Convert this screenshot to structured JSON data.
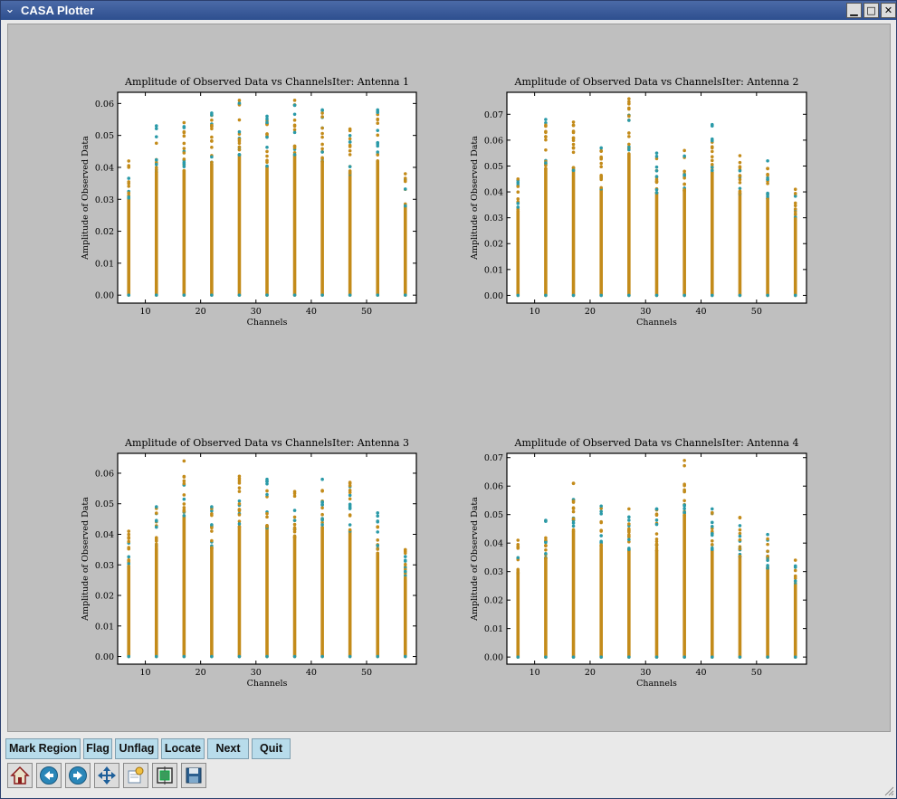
{
  "window": {
    "title": "CASA Plotter",
    "controls": [
      "minimize-icon",
      "maximize-icon",
      "close-icon"
    ]
  },
  "toolbar": {
    "buttons": [
      "Mark Region",
      "Flag",
      "Unflag",
      "Locate",
      "Next",
      "Quit"
    ]
  },
  "icon_toolbar": [
    "home-icon",
    "back-icon",
    "forward-icon",
    "pan-icon",
    "zoom-icon",
    "subplots-icon",
    "save-icon"
  ],
  "colors": {
    "series_a": "#2a9aa8",
    "series_b": "#c38b1a",
    "plot_background": "#bfbfbf",
    "title_bar": "#2e4f8f",
    "button": "#b8dceb"
  },
  "chart_data": [
    {
      "type": "scatter",
      "title": "Amplitude of Observed Data vs ChannelsIter: Antenna 1",
      "xlabel": "Channels",
      "ylabel": "Amplitude of Observed Data",
      "xlim": [
        5,
        59
      ],
      "ylim": [
        -0.0025,
        0.0635
      ],
      "xticks": [
        10,
        20,
        30,
        40,
        50
      ],
      "yticks": [
        0.0,
        0.01,
        0.02,
        0.03,
        0.04,
        0.05,
        0.06
      ],
      "ytick_labels": [
        "0.00",
        "0.01",
        "0.02",
        "0.03",
        "0.04",
        "0.05",
        "0.06"
      ],
      "channels": [
        7,
        12,
        17,
        22,
        27,
        32,
        37,
        42,
        47,
        52,
        57
      ],
      "column_max": [
        0.042,
        0.053,
        0.054,
        0.057,
        0.061,
        0.056,
        0.061,
        0.058,
        0.052,
        0.058,
        0.038
      ]
    },
    {
      "type": "scatter",
      "title": "Amplitude of Observed Data vs ChannelsIter: Antenna 2",
      "xlabel": "Channels",
      "ylabel": "Amplitude of Observed Data",
      "xlim": [
        5,
        59
      ],
      "ylim": [
        -0.003,
        0.0785
      ],
      "xticks": [
        10,
        20,
        30,
        40,
        50
      ],
      "yticks": [
        0.0,
        0.01,
        0.02,
        0.03,
        0.04,
        0.05,
        0.06,
        0.07
      ],
      "ytick_labels": [
        "0.00",
        "0.01",
        "0.02",
        "0.03",
        "0.04",
        "0.05",
        "0.06",
        "0.07"
      ],
      "channels": [
        7,
        12,
        17,
        22,
        27,
        32,
        37,
        42,
        47,
        52,
        57
      ],
      "column_max": [
        0.045,
        0.068,
        0.067,
        0.057,
        0.076,
        0.055,
        0.056,
        0.066,
        0.054,
        0.052,
        0.041
      ]
    },
    {
      "type": "scatter",
      "title": "Amplitude of Observed Data vs ChannelsIter: Antenna 3",
      "xlabel": "Channels",
      "ylabel": "Amplitude of Observed Data",
      "xlim": [
        5,
        59
      ],
      "ylim": [
        -0.0025,
        0.0665
      ],
      "xticks": [
        10,
        20,
        30,
        40,
        50
      ],
      "yticks": [
        0.0,
        0.01,
        0.02,
        0.03,
        0.04,
        0.05,
        0.06
      ],
      "ytick_labels": [
        "0.00",
        "0.01",
        "0.02",
        "0.03",
        "0.04",
        "0.05",
        "0.06"
      ],
      "channels": [
        7,
        12,
        17,
        22,
        27,
        32,
        37,
        42,
        47,
        52,
        57
      ],
      "column_max": [
        0.041,
        0.049,
        0.064,
        0.049,
        0.059,
        0.058,
        0.054,
        0.058,
        0.057,
        0.047,
        0.035
      ]
    },
    {
      "type": "scatter",
      "title": "Amplitude of Observed Data vs ChannelsIter: Antenna 4",
      "xlabel": "Channels",
      "ylabel": "Amplitude of Observed Data",
      "xlim": [
        5,
        59
      ],
      "ylim": [
        -0.0025,
        0.0715
      ],
      "xticks": [
        10,
        20,
        30,
        40,
        50
      ],
      "yticks": [
        0.0,
        0.01,
        0.02,
        0.03,
        0.04,
        0.05,
        0.06,
        0.07
      ],
      "ytick_labels": [
        "0.00",
        "0.01",
        "0.02",
        "0.03",
        "0.04",
        "0.05",
        "0.06",
        "0.07"
      ],
      "channels": [
        7,
        12,
        17,
        22,
        27,
        32,
        37,
        42,
        47,
        52,
        57
      ],
      "column_max": [
        0.041,
        0.048,
        0.061,
        0.053,
        0.052,
        0.052,
        0.069,
        0.052,
        0.049,
        0.043,
        0.034
      ]
    }
  ]
}
